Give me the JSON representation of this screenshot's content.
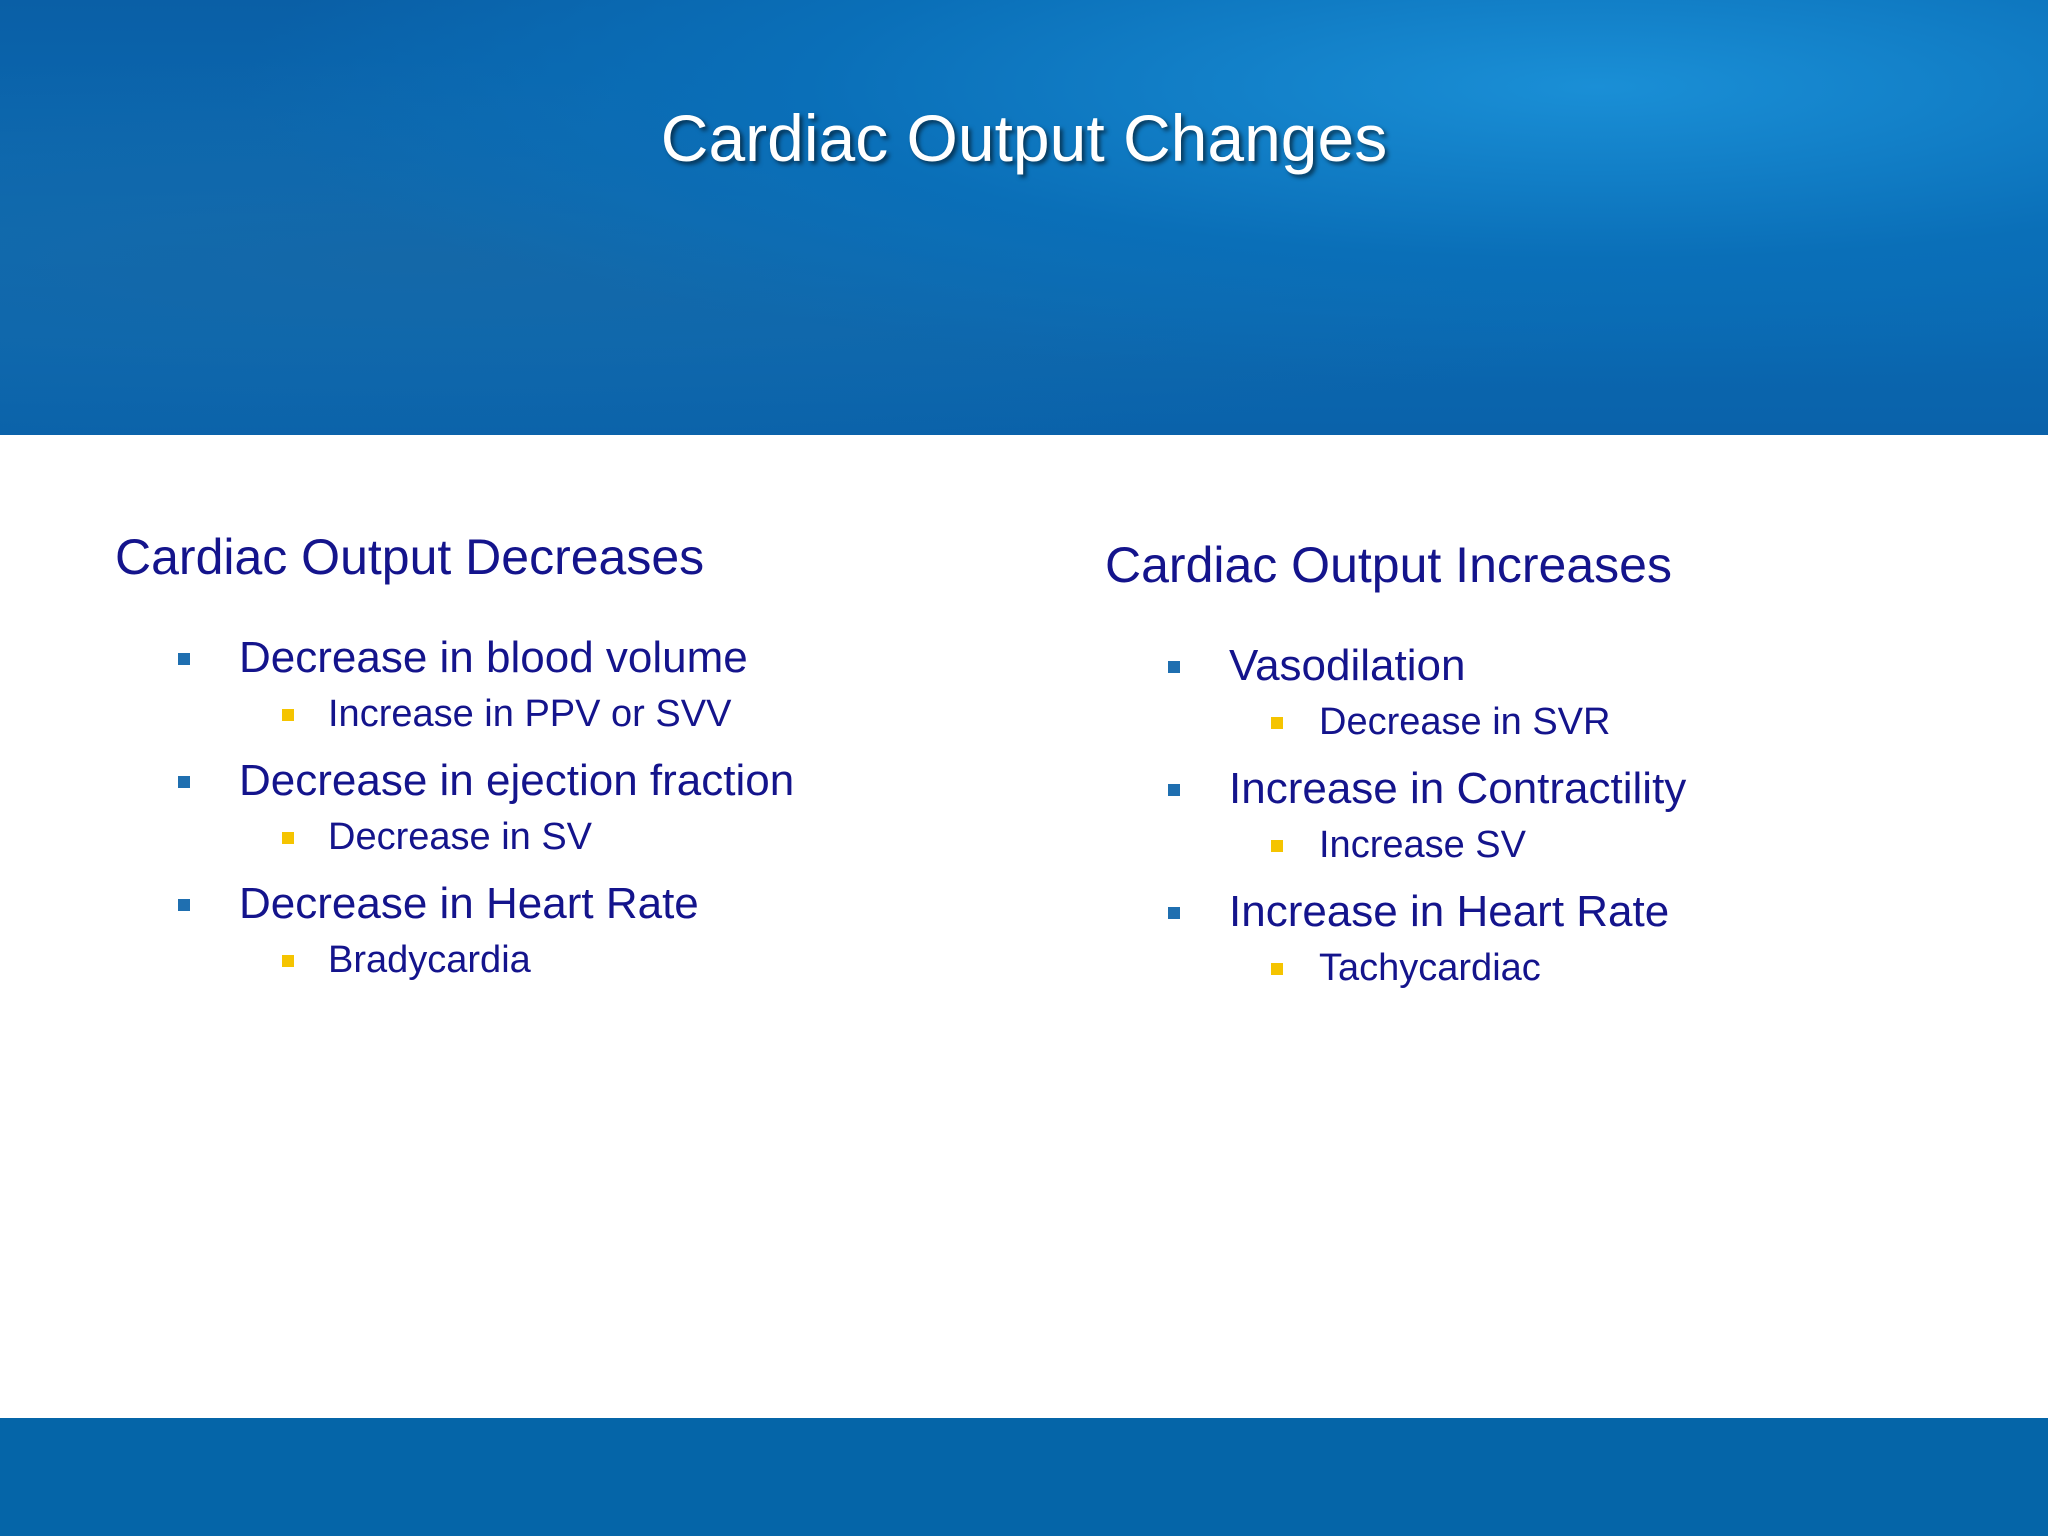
{
  "title": "Cardiac Output Changes",
  "columns": [
    {
      "heading": "Cardiac Output Decreases",
      "items": [
        {
          "text": "Decrease in blood volume",
          "subitems": [
            "Increase in PPV or SVV"
          ]
        },
        {
          "text": "Decrease in ejection fraction",
          "subitems": [
            "Decrease in SV"
          ]
        },
        {
          "text": "Decrease in Heart Rate",
          "subitems": [
            "Bradycardia"
          ]
        }
      ]
    },
    {
      "heading": "Cardiac Output Increases",
      "items": [
        {
          "text": "Vasodilation",
          "subitems": [
            "Decrease in SVR"
          ]
        },
        {
          "text": "Increase in Contractility",
          "subitems": [
            "Increase SV"
          ]
        },
        {
          "text": "Increase in Heart Rate",
          "subitems": [
            "Tachycardiac"
          ]
        }
      ]
    }
  ]
}
